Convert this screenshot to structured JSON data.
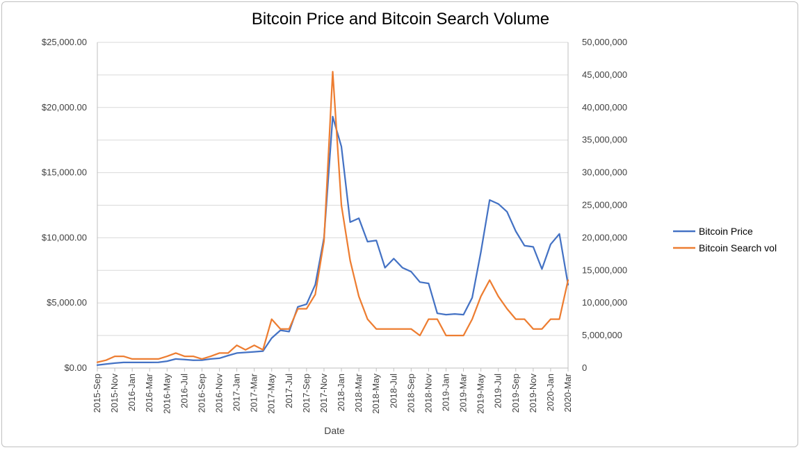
{
  "chart_data": {
    "type": "line",
    "title": "Bitcoin Price and Bitcoin Search Volume",
    "xlabel": "Date",
    "ylabel": "",
    "y2label": "",
    "grid": true,
    "legend_position": "right",
    "ylim": [
      0,
      25000
    ],
    "y2lim": [
      0,
      50000000
    ],
    "yticks": [
      "$0.00",
      "$5,000.00",
      "$10,000.00",
      "$15,000.00",
      "$20,000.00",
      "$25,000.00"
    ],
    "y2ticks": [
      "0",
      "5,000,000",
      "10,000,000",
      "15,000,000",
      "20,000,000",
      "25,000,000",
      "30,000,000",
      "35,000,000",
      "40,000,000",
      "45,000,000",
      "50,000,000"
    ],
    "x_tick_labels": [
      "2015-Sep",
      "2015-Nov",
      "2016-Jan",
      "2016-Mar",
      "2016-May",
      "2016-Jul",
      "2016-Sep",
      "2016-Nov",
      "2017-Jan",
      "2017-Mar",
      "2017-May",
      "2017-Jul",
      "2017-Sep",
      "2017-Nov",
      "2018-Jan",
      "2018-Mar",
      "2018-May",
      "2018-Jul",
      "2018-Sep",
      "2018-Nov",
      "2019-Jan",
      "2019-Mar",
      "2019-May",
      "2019-Jul",
      "2019-Sep",
      "2019-Nov",
      "2020-Jan",
      "2020-Mar"
    ],
    "x": [
      "2015-Sep",
      "2015-Oct",
      "2015-Nov",
      "2015-Dec",
      "2016-Jan",
      "2016-Feb",
      "2016-Mar",
      "2016-Apr",
      "2016-May",
      "2016-Jun",
      "2016-Jul",
      "2016-Aug",
      "2016-Sep",
      "2016-Oct",
      "2016-Nov",
      "2016-Dec",
      "2017-Jan",
      "2017-Feb",
      "2017-Mar",
      "2017-Apr",
      "2017-May",
      "2017-Jun",
      "2017-Jul",
      "2017-Aug",
      "2017-Sep",
      "2017-Oct",
      "2017-Nov",
      "2017-Dec",
      "2018-Jan",
      "2018-Feb",
      "2018-Mar",
      "2018-Apr",
      "2018-May",
      "2018-Jun",
      "2018-Jul",
      "2018-Aug",
      "2018-Sep",
      "2018-Oct",
      "2018-Nov",
      "2018-Dec",
      "2019-Jan",
      "2019-Feb",
      "2019-Mar",
      "2019-Apr",
      "2019-May",
      "2019-Jun",
      "2019-Jul",
      "2019-Aug",
      "2019-Sep",
      "2019-Oct",
      "2019-Nov",
      "2019-Dec",
      "2020-Jan",
      "2020-Feb",
      "2020-Mar"
    ],
    "series": [
      {
        "name": "Bitcoin Price",
        "axis": "left",
        "color": "#4472c4",
        "values": [
          230,
          310,
          380,
          430,
          430,
          430,
          430,
          440,
          530,
          700,
          650,
          600,
          610,
          700,
          750,
          960,
          1150,
          1200,
          1250,
          1300,
          2300,
          2900,
          2800,
          4700,
          4900,
          6400,
          10000,
          19300,
          17000,
          11200,
          11500,
          9700,
          9800,
          7700,
          8400,
          7700,
          7400,
          6600,
          6500,
          4200,
          4100,
          4150,
          4100,
          5400,
          8900,
          12900,
          12600,
          12000,
          10500,
          9400,
          9300,
          7600,
          9500,
          10300,
          6400
        ]
      },
      {
        "name": "Bitcoin Search vol",
        "axis": "right",
        "color": "#ed7d31",
        "values": [
          900000,
          1200000,
          1800000,
          1800000,
          1400000,
          1400000,
          1400000,
          1400000,
          1800000,
          2300000,
          1800000,
          1800000,
          1400000,
          1800000,
          2300000,
          2300000,
          3500000,
          2800000,
          3500000,
          2800000,
          7500000,
          6000000,
          6000000,
          9100000,
          9100000,
          11300000,
          19500000,
          45500000,
          25000000,
          16500000,
          11000000,
          7500000,
          6000000,
          6000000,
          6000000,
          6000000,
          6000000,
          5000000,
          7500000,
          7500000,
          5000000,
          5000000,
          5000000,
          7500000,
          11000000,
          13500000,
          11000000,
          9100000,
          7500000,
          7500000,
          6000000,
          6000000,
          7500000,
          7500000,
          13500000
        ]
      }
    ]
  }
}
